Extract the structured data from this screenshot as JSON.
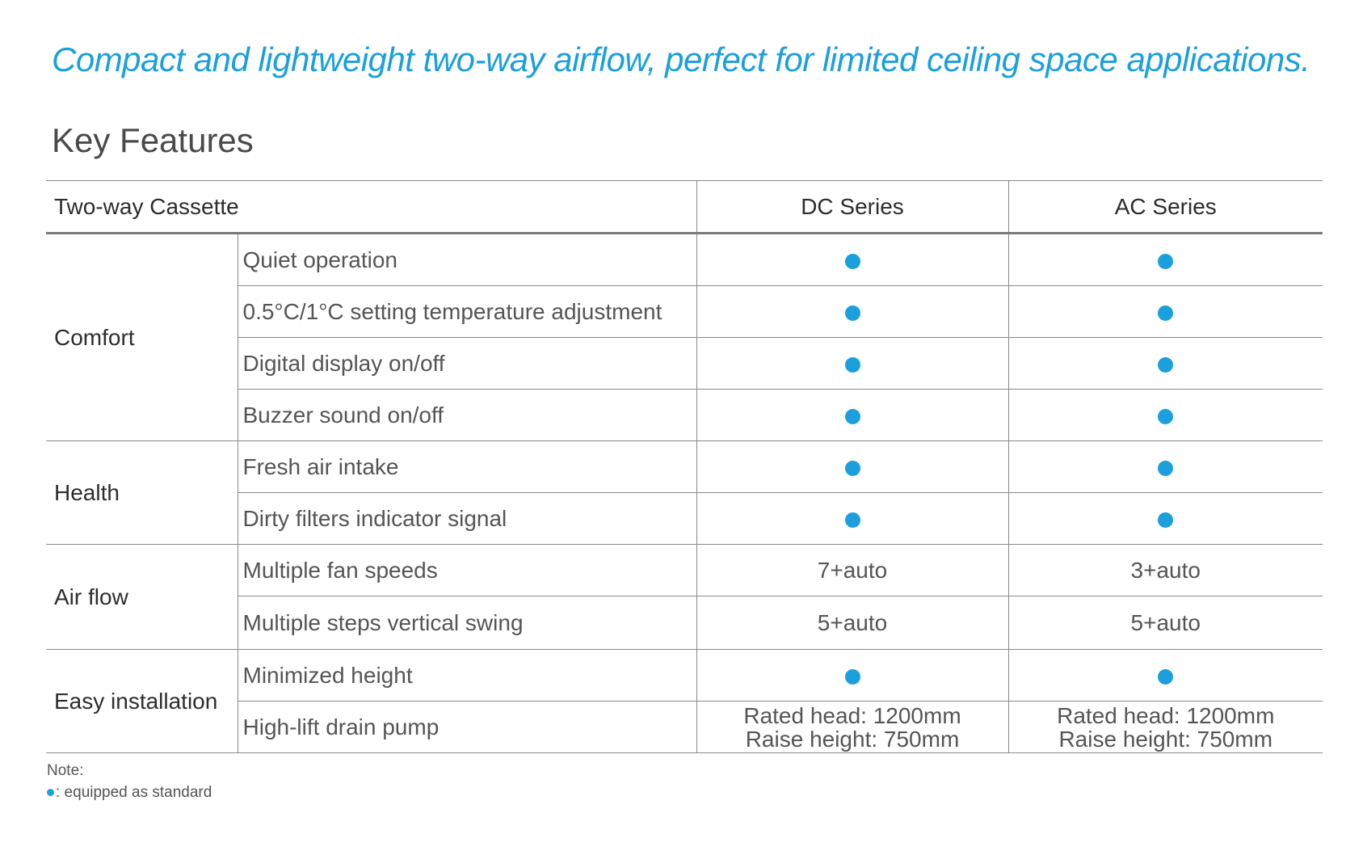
{
  "tagline": "Compact and lightweight two-way airflow, perfect for limited ceiling space applications.",
  "heading": "Key Features",
  "table": {
    "header": {
      "name": "Two-way Cassette",
      "dc": "DC Series",
      "ac": "AC Series"
    },
    "groups": {
      "comfort": "Comfort",
      "health": "Health",
      "airflow": "Air flow",
      "installation": "Easy installation"
    },
    "rows": [
      {
        "feature": "Quiet operation",
        "dc": "standard",
        "ac": "standard"
      },
      {
        "feature": "0.5°C/1°C setting temperature adjustment",
        "dc": "standard",
        "ac": "standard"
      },
      {
        "feature": "Digital display on/off",
        "dc": "standard",
        "ac": "standard"
      },
      {
        "feature": "Buzzer sound on/off",
        "dc": "standard",
        "ac": "standard"
      },
      {
        "feature": "Fresh air intake",
        "dc": "standard",
        "ac": "standard"
      },
      {
        "feature": "Dirty filters indicator signal",
        "dc": "standard",
        "ac": "standard"
      },
      {
        "feature": "Multiple fan speeds",
        "dc": "7+auto",
        "ac": "3+auto"
      },
      {
        "feature": "Multiple steps vertical swing",
        "dc": "5+auto",
        "ac": "5+auto"
      },
      {
        "feature": "Minimized height",
        "dc": "standard",
        "ac": "standard"
      },
      {
        "feature": "High-lift drain pump",
        "dc_line1": "Rated head: 1200mm",
        "dc_line2": "Raise height: 750mm",
        "ac_line1": "Rated head: 1200mm",
        "ac_line2": "Raise height: 750mm"
      }
    ]
  },
  "note": {
    "title": "Note:",
    "legend": ": equipped as standard"
  },
  "colors": {
    "accent": "#1ba0dd",
    "heading": "#4a4a4a",
    "rule": "#8a8a8a"
  },
  "icons": {
    "standard_marker": "filled-circle"
  }
}
